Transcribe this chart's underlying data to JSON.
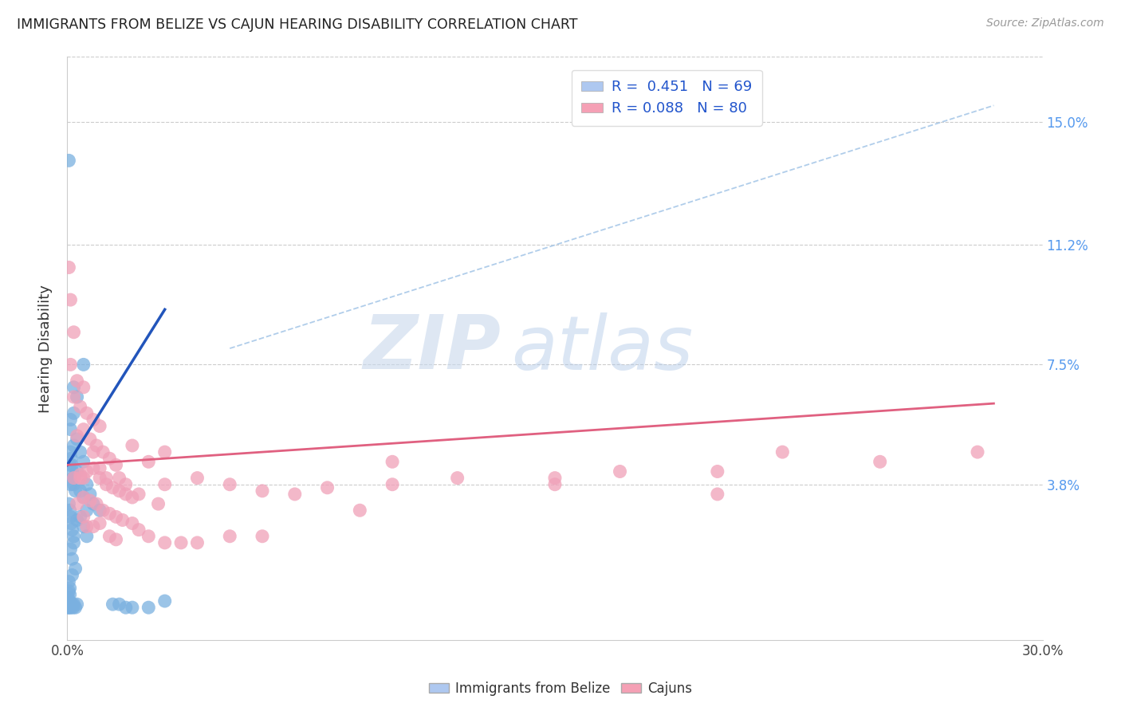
{
  "title": "IMMIGRANTS FROM BELIZE VS CAJUN HEARING DISABILITY CORRELATION CHART",
  "source": "Source: ZipAtlas.com",
  "ylabel": "Hearing Disability",
  "ytick_labels": [
    "15.0%",
    "11.2%",
    "7.5%",
    "3.8%"
  ],
  "ytick_values": [
    0.15,
    0.112,
    0.075,
    0.038
  ],
  "xmin": 0.0,
  "xmax": 0.3,
  "ymin": -0.01,
  "ymax": 0.17,
  "legend_label1": "R =  0.451   N = 69",
  "legend_label2": "R = 0.088   N = 80",
  "blue_color": "#7ab0e0",
  "pink_color": "#f0a0b8",
  "blue_line_color": "#2255bb",
  "pink_line_color": "#e06080",
  "watermark_zip": "ZIP",
  "watermark_atlas": "atlas",
  "blue_line": {
    "x": [
      0.0,
      0.03
    ],
    "y": [
      0.044,
      0.092
    ]
  },
  "pink_line": {
    "x": [
      0.0,
      0.285
    ],
    "y": [
      0.044,
      0.063
    ]
  },
  "diagonal_line": {
    "x": [
      0.05,
      0.285
    ],
    "y": [
      0.08,
      0.155
    ]
  },
  "blue_scatter": [
    [
      0.0005,
      0.138
    ],
    [
      0.005,
      0.075
    ],
    [
      0.002,
      0.068
    ],
    [
      0.003,
      0.065
    ],
    [
      0.002,
      0.06
    ],
    [
      0.001,
      0.058
    ],
    [
      0.001,
      0.055
    ],
    [
      0.003,
      0.052
    ],
    [
      0.002,
      0.05
    ],
    [
      0.004,
      0.048
    ],
    [
      0.005,
      0.045
    ],
    [
      0.003,
      0.042
    ],
    [
      0.002,
      0.04
    ],
    [
      0.001,
      0.038
    ],
    [
      0.006,
      0.038
    ],
    [
      0.004,
      0.036
    ],
    [
      0.007,
      0.035
    ],
    [
      0.005,
      0.034
    ],
    [
      0.008,
      0.032
    ],
    [
      0.006,
      0.03
    ],
    [
      0.01,
      0.03
    ],
    [
      0.004,
      0.028
    ],
    [
      0.003,
      0.027
    ],
    [
      0.005,
      0.025
    ],
    [
      0.006,
      0.022
    ],
    [
      0.002,
      0.02
    ],
    [
      0.001,
      0.018
    ],
    [
      0.0015,
      0.015
    ],
    [
      0.0025,
      0.012
    ],
    [
      0.0015,
      0.01
    ],
    [
      0.0005,
      0.008
    ],
    [
      0.0008,
      0.006
    ],
    [
      0.0005,
      0.005
    ],
    [
      0.0008,
      0.004
    ],
    [
      0.0003,
      0.003
    ],
    [
      0.0005,
      0.002
    ],
    [
      0.0002,
      0.001
    ],
    [
      0.0003,
      0.0005
    ],
    [
      0.0001,
      0.0002
    ],
    [
      0.0002,
      0.0
    ],
    [
      0.0004,
      0.0
    ],
    [
      0.0006,
      0.001
    ],
    [
      0.0008,
      0.0
    ],
    [
      0.001,
      0.001
    ],
    [
      0.0012,
      0.0
    ],
    [
      0.0015,
      0.001
    ],
    [
      0.0018,
      0.0
    ],
    [
      0.002,
      0.001
    ],
    [
      0.0025,
      0.0
    ],
    [
      0.003,
      0.001
    ],
    [
      0.0005,
      0.032
    ],
    [
      0.0008,
      0.03
    ],
    [
      0.001,
      0.028
    ],
    [
      0.0012,
      0.026
    ],
    [
      0.0015,
      0.024
    ],
    [
      0.002,
      0.022
    ],
    [
      0.0008,
      0.044
    ],
    [
      0.0015,
      0.042
    ],
    [
      0.0018,
      0.04
    ],
    [
      0.002,
      0.038
    ],
    [
      0.0025,
      0.036
    ],
    [
      0.001,
      0.048
    ],
    [
      0.0012,
      0.046
    ],
    [
      0.0014,
      0.044
    ],
    [
      0.02,
      0.0
    ],
    [
      0.018,
      0.0
    ],
    [
      0.025,
      0.0
    ],
    [
      0.03,
      0.002
    ],
    [
      0.016,
      0.001
    ],
    [
      0.014,
      0.001
    ]
  ],
  "pink_scatter": [
    [
      0.0005,
      0.105
    ],
    [
      0.001,
      0.095
    ],
    [
      0.002,
      0.085
    ],
    [
      0.001,
      0.075
    ],
    [
      0.003,
      0.07
    ],
    [
      0.005,
      0.068
    ],
    [
      0.002,
      0.065
    ],
    [
      0.004,
      0.062
    ],
    [
      0.006,
      0.06
    ],
    [
      0.008,
      0.058
    ],
    [
      0.01,
      0.056
    ],
    [
      0.005,
      0.055
    ],
    [
      0.003,
      0.053
    ],
    [
      0.007,
      0.052
    ],
    [
      0.009,
      0.05
    ],
    [
      0.011,
      0.048
    ],
    [
      0.013,
      0.046
    ],
    [
      0.015,
      0.044
    ],
    [
      0.008,
      0.043
    ],
    [
      0.006,
      0.042
    ],
    [
      0.004,
      0.041
    ],
    [
      0.002,
      0.04
    ],
    [
      0.01,
      0.04
    ],
    [
      0.012,
      0.038
    ],
    [
      0.014,
      0.037
    ],
    [
      0.016,
      0.036
    ],
    [
      0.018,
      0.035
    ],
    [
      0.02,
      0.034
    ],
    [
      0.005,
      0.034
    ],
    [
      0.007,
      0.033
    ],
    [
      0.003,
      0.032
    ],
    [
      0.009,
      0.032
    ],
    [
      0.011,
      0.03
    ],
    [
      0.013,
      0.029
    ],
    [
      0.015,
      0.028
    ],
    [
      0.005,
      0.028
    ],
    [
      0.017,
      0.027
    ],
    [
      0.02,
      0.026
    ],
    [
      0.01,
      0.026
    ],
    [
      0.006,
      0.025
    ],
    [
      0.008,
      0.025
    ],
    [
      0.022,
      0.024
    ],
    [
      0.025,
      0.022
    ],
    [
      0.013,
      0.022
    ],
    [
      0.015,
      0.021
    ],
    [
      0.03,
      0.02
    ],
    [
      0.035,
      0.02
    ],
    [
      0.04,
      0.02
    ],
    [
      0.05,
      0.022
    ],
    [
      0.06,
      0.022
    ],
    [
      0.07,
      0.035
    ],
    [
      0.08,
      0.037
    ],
    [
      0.09,
      0.03
    ],
    [
      0.1,
      0.038
    ],
    [
      0.12,
      0.04
    ],
    [
      0.15,
      0.04
    ],
    [
      0.17,
      0.042
    ],
    [
      0.2,
      0.042
    ],
    [
      0.22,
      0.048
    ],
    [
      0.25,
      0.045
    ],
    [
      0.28,
      0.048
    ],
    [
      0.025,
      0.045
    ],
    [
      0.03,
      0.048
    ],
    [
      0.04,
      0.04
    ],
    [
      0.05,
      0.038
    ],
    [
      0.06,
      0.036
    ],
    [
      0.1,
      0.045
    ],
    [
      0.15,
      0.038
    ],
    [
      0.2,
      0.035
    ],
    [
      0.005,
      0.04
    ],
    [
      0.01,
      0.043
    ],
    [
      0.008,
      0.048
    ],
    [
      0.02,
      0.05
    ],
    [
      0.03,
      0.038
    ],
    [
      0.004,
      0.04
    ],
    [
      0.012,
      0.04
    ],
    [
      0.016,
      0.04
    ],
    [
      0.018,
      0.038
    ],
    [
      0.022,
      0.035
    ],
    [
      0.028,
      0.032
    ]
  ]
}
